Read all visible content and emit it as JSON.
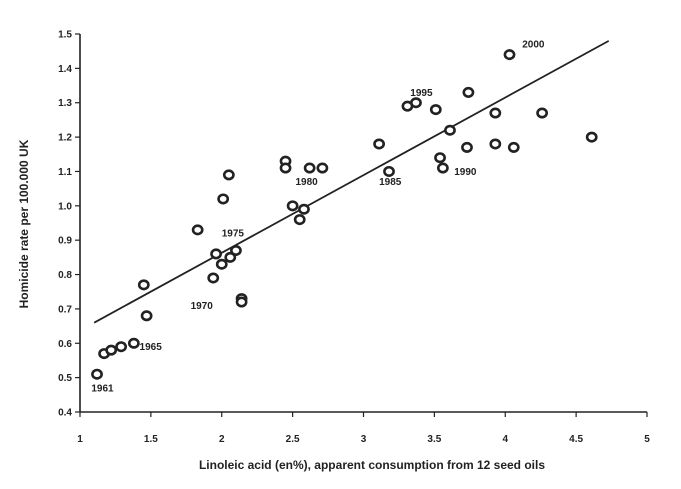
{
  "chart_data": {
    "type": "scatter",
    "title": "",
    "xlabel": "Linoleic acid  (en%), apparent consumption from 12 seed oils",
    "ylabel": "Homicide rate per 100.000 UK",
    "xlim": [
      1,
      5
    ],
    "ylim": [
      0.4,
      1.5
    ],
    "x_ticks": [
      "1",
      "1.5",
      "2",
      "2.5",
      "3",
      "3.5",
      "4",
      "4.5",
      "5"
    ],
    "y_ticks": [
      "0.4",
      "0.5",
      "0.6",
      "0.7",
      "0.8",
      "0.9",
      "1.0",
      "1.1",
      "1.2",
      "1.3",
      "1.4",
      "1.5"
    ],
    "grid": false,
    "points": [
      {
        "x": 1.12,
        "y": 0.51
      },
      {
        "x": 1.17,
        "y": 0.57
      },
      {
        "x": 1.22,
        "y": 0.58
      },
      {
        "x": 1.29,
        "y": 0.59
      },
      {
        "x": 1.38,
        "y": 0.6
      },
      {
        "x": 1.45,
        "y": 0.77
      },
      {
        "x": 1.47,
        "y": 0.68
      },
      {
        "x": 1.83,
        "y": 0.93
      },
      {
        "x": 1.94,
        "y": 0.79
      },
      {
        "x": 1.96,
        "y": 0.86
      },
      {
        "x": 2.0,
        "y": 0.83
      },
      {
        "x": 2.01,
        "y": 1.02
      },
      {
        "x": 2.05,
        "y": 1.09
      },
      {
        "x": 2.06,
        "y": 0.85
      },
      {
        "x": 2.1,
        "y": 0.87
      },
      {
        "x": 2.14,
        "y": 0.73
      },
      {
        "x": 2.14,
        "y": 0.72
      },
      {
        "x": 2.45,
        "y": 1.13
      },
      {
        "x": 2.45,
        "y": 1.11
      },
      {
        "x": 2.5,
        "y": 1.0
      },
      {
        "x": 2.55,
        "y": 0.96
      },
      {
        "x": 2.58,
        "y": 0.99
      },
      {
        "x": 2.62,
        "y": 1.11
      },
      {
        "x": 2.71,
        "y": 1.11
      },
      {
        "x": 3.11,
        "y": 1.18
      },
      {
        "x": 3.18,
        "y": 1.1
      },
      {
        "x": 3.31,
        "y": 1.29
      },
      {
        "x": 3.37,
        "y": 1.3
      },
      {
        "x": 3.51,
        "y": 1.28
      },
      {
        "x": 3.54,
        "y": 1.14
      },
      {
        "x": 3.56,
        "y": 1.11
      },
      {
        "x": 3.61,
        "y": 1.22
      },
      {
        "x": 3.73,
        "y": 1.17
      },
      {
        "x": 3.74,
        "y": 1.33
      },
      {
        "x": 3.93,
        "y": 1.27
      },
      {
        "x": 3.93,
        "y": 1.18
      },
      {
        "x": 4.03,
        "y": 1.44
      },
      {
        "x": 4.06,
        "y": 1.17
      },
      {
        "x": 4.26,
        "y": 1.27
      },
      {
        "x": 4.61,
        "y": 1.2
      }
    ],
    "trendline": {
      "x": [
        1.1,
        4.73
      ],
      "y": [
        0.66,
        1.48
      ]
    },
    "annotations": [
      {
        "text": "1961",
        "x": 1.08,
        "y": 0.46
      },
      {
        "text": "1965",
        "x": 1.42,
        "y": 0.58
      },
      {
        "text": "1970",
        "x": 1.78,
        "y": 0.7
      },
      {
        "text": "1975",
        "x": 2.0,
        "y": 0.91
      },
      {
        "text": "1980",
        "x": 2.52,
        "y": 1.06
      },
      {
        "text": "1985",
        "x": 3.11,
        "y": 1.06
      },
      {
        "text": "1990",
        "x": 3.64,
        "y": 1.09
      },
      {
        "text": "1995",
        "x": 3.33,
        "y": 1.32
      },
      {
        "text": "2000",
        "x": 4.12,
        "y": 1.46
      }
    ]
  }
}
